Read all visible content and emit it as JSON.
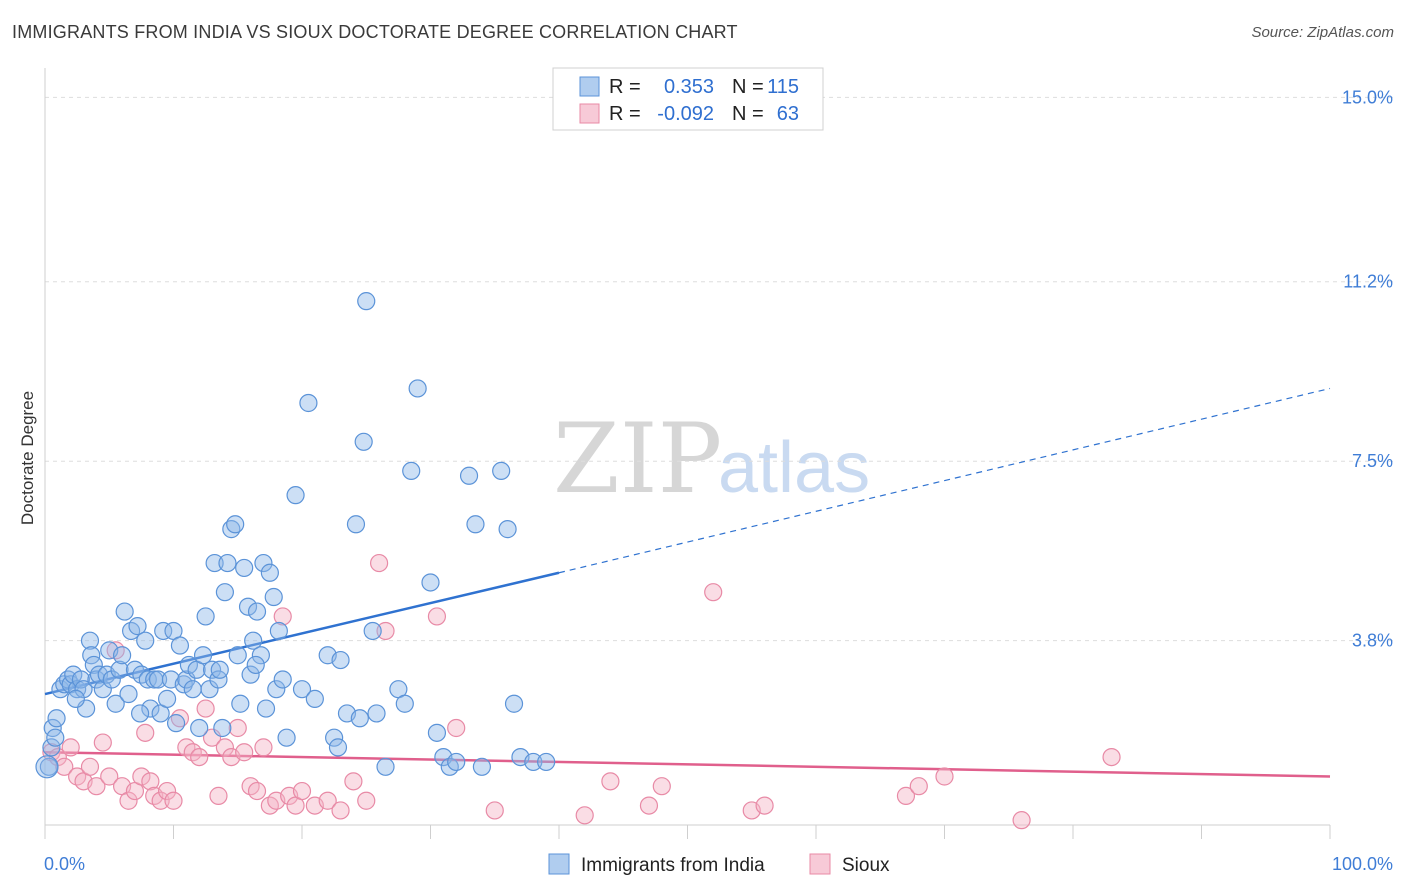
{
  "title": "IMMIGRANTS FROM INDIA VS SIOUX DOCTORATE DEGREE CORRELATION CHART",
  "source": "Source: ZipAtlas.com",
  "watermark": {
    "zip": "ZIP",
    "atlas": "atlas"
  },
  "colors": {
    "india": "#8fb8e8",
    "india_stroke": "#5b93d8",
    "india_line": "#2f72d0",
    "sioux": "#f4b3c6",
    "sioux_stroke": "#e88aa6",
    "sioux_line": "#e05f8c",
    "grid": "#dddddd",
    "tick_label": "#3f7dd6"
  },
  "legend": {
    "rows": [
      {
        "r_label": "R =",
        "r_value": "0.353",
        "n_label": "N =",
        "n_value": "115",
        "series": "india"
      },
      {
        "r_label": "R =",
        "r_value": "-0.092",
        "n_label": "N =",
        "n_value": "63",
        "series": "sioux"
      }
    ]
  },
  "bottom_legend": [
    {
      "label": "Immigrants from India",
      "series": "india"
    },
    {
      "label": "Sioux",
      "series": "sioux"
    }
  ],
  "chart_data": {
    "type": "scatter",
    "title": "IMMIGRANTS FROM INDIA VS SIOUX DOCTORATE DEGREE CORRELATION CHART",
    "xlabel": "",
    "ylabel": "Doctorate Degree",
    "xlim": [
      0,
      100
    ],
    "ylim": [
      0,
      15.4
    ],
    "y_ticks": [
      {
        "value": 3.8,
        "label": "3.8%"
      },
      {
        "value": 7.5,
        "label": "7.5%"
      },
      {
        "value": 11.2,
        "label": "11.2%"
      },
      {
        "value": 15.0,
        "label": "15.0%"
      }
    ],
    "x_tick_labels": {
      "min": "0.0%",
      "max": "100.0%"
    },
    "series": [
      {
        "name": "Immigrants from India",
        "key": "india",
        "R": 0.353,
        "N": 115,
        "trend": {
          "x0": 0,
          "y0": 2.7,
          "x1": 40,
          "y1": 5.2,
          "dashed_to_x": 100,
          "dashed_y1": 9.0
        },
        "points": [
          [
            0.3,
            1.2
          ],
          [
            0.5,
            1.6
          ],
          [
            0.6,
            2.0
          ],
          [
            0.8,
            1.8
          ],
          [
            0.9,
            2.2
          ],
          [
            1.2,
            2.8
          ],
          [
            1.5,
            2.9
          ],
          [
            1.8,
            3.0
          ],
          [
            2.0,
            2.9
          ],
          [
            2.2,
            3.1
          ],
          [
            2.5,
            2.8
          ],
          [
            2.8,
            3.0
          ],
          [
            3.0,
            2.8
          ],
          [
            3.2,
            2.4
          ],
          [
            3.5,
            3.8
          ],
          [
            3.6,
            3.5
          ],
          [
            3.8,
            3.3
          ],
          [
            4.0,
            3.0
          ],
          [
            4.2,
            3.1
          ],
          [
            4.5,
            2.8
          ],
          [
            4.8,
            3.1
          ],
          [
            5.0,
            3.6
          ],
          [
            5.2,
            3.0
          ],
          [
            5.5,
            2.5
          ],
          [
            5.8,
            3.2
          ],
          [
            6.0,
            3.5
          ],
          [
            6.2,
            4.4
          ],
          [
            6.5,
            2.7
          ],
          [
            6.7,
            4.0
          ],
          [
            7.0,
            3.2
          ],
          [
            7.2,
            4.1
          ],
          [
            7.5,
            3.1
          ],
          [
            7.8,
            3.8
          ],
          [
            8.0,
            3.0
          ],
          [
            8.2,
            2.4
          ],
          [
            8.5,
            3.0
          ],
          [
            8.8,
            3.0
          ],
          [
            9.0,
            2.3
          ],
          [
            9.2,
            4.0
          ],
          [
            9.5,
            2.6
          ],
          [
            9.8,
            3.0
          ],
          [
            10.0,
            4.0
          ],
          [
            10.2,
            2.1
          ],
          [
            10.5,
            3.7
          ],
          [
            10.8,
            2.9
          ],
          [
            11.0,
            3.0
          ],
          [
            11.2,
            3.3
          ],
          [
            11.5,
            2.8
          ],
          [
            11.8,
            3.2
          ],
          [
            12.0,
            2.0
          ],
          [
            12.3,
            3.5
          ],
          [
            12.5,
            4.3
          ],
          [
            12.8,
            2.8
          ],
          [
            13.0,
            3.2
          ],
          [
            13.2,
            5.4
          ],
          [
            13.5,
            3.0
          ],
          [
            13.8,
            2.0
          ],
          [
            14.0,
            4.8
          ],
          [
            14.2,
            5.4
          ],
          [
            14.5,
            6.1
          ],
          [
            14.8,
            6.2
          ],
          [
            15.0,
            3.5
          ],
          [
            15.2,
            2.5
          ],
          [
            15.5,
            5.3
          ],
          [
            15.8,
            4.5
          ],
          [
            16.0,
            3.1
          ],
          [
            16.2,
            3.8
          ],
          [
            16.5,
            4.4
          ],
          [
            16.8,
            3.5
          ],
          [
            17.0,
            5.4
          ],
          [
            17.2,
            2.4
          ],
          [
            17.5,
            5.2
          ],
          [
            17.8,
            4.7
          ],
          [
            18.0,
            2.8
          ],
          [
            18.2,
            4.0
          ],
          [
            18.5,
            3.0
          ],
          [
            18.8,
            1.8
          ],
          [
            19.5,
            6.8
          ],
          [
            20.0,
            2.8
          ],
          [
            20.5,
            8.7
          ],
          [
            21.0,
            2.6
          ],
          [
            22.0,
            3.5
          ],
          [
            22.5,
            1.8
          ],
          [
            23.0,
            3.4
          ],
          [
            23.5,
            2.3
          ],
          [
            24.2,
            6.2
          ],
          [
            24.5,
            2.2
          ],
          [
            24.8,
            7.9
          ],
          [
            25.0,
            10.8
          ],
          [
            25.5,
            4.0
          ],
          [
            25.8,
            2.3
          ],
          [
            26.5,
            1.2
          ],
          [
            27.5,
            2.8
          ],
          [
            28.0,
            2.5
          ],
          [
            28.5,
            7.3
          ],
          [
            29.0,
            9.0
          ],
          [
            30.0,
            5.0
          ],
          [
            30.5,
            1.9
          ],
          [
            31.0,
            1.4
          ],
          [
            31.5,
            1.2
          ],
          [
            32.0,
            1.3
          ],
          [
            33.0,
            7.2
          ],
          [
            33.5,
            6.2
          ],
          [
            34.0,
            1.2
          ],
          [
            35.5,
            7.3
          ],
          [
            36.0,
            6.1
          ],
          [
            36.5,
            2.5
          ],
          [
            37.0,
            1.4
          ],
          [
            38.0,
            1.3
          ],
          [
            39.0,
            1.3
          ],
          [
            2.4,
            2.6
          ],
          [
            7.4,
            2.3
          ],
          [
            13.6,
            3.2
          ],
          [
            16.4,
            3.3
          ],
          [
            22.8,
            1.6
          ]
        ]
      },
      {
        "name": "Sioux",
        "key": "sioux",
        "R": -0.092,
        "N": 63,
        "trend": {
          "x0": 0,
          "y0": 1.5,
          "x1": 100,
          "y1": 1.0
        },
        "points": [
          [
            0.5,
            1.5
          ],
          [
            1.0,
            1.4
          ],
          [
            1.5,
            1.2
          ],
          [
            2.0,
            1.6
          ],
          [
            2.5,
            1.0
          ],
          [
            3.0,
            0.9
          ],
          [
            3.5,
            1.2
          ],
          [
            4.0,
            0.8
          ],
          [
            4.5,
            1.7
          ],
          [
            5.0,
            1.0
          ],
          [
            5.5,
            3.6
          ],
          [
            6.0,
            0.8
          ],
          [
            6.5,
            0.5
          ],
          [
            7.0,
            0.7
          ],
          [
            7.5,
            1.0
          ],
          [
            7.8,
            1.9
          ],
          [
            8.2,
            0.9
          ],
          [
            8.5,
            0.6
          ],
          [
            9.0,
            0.5
          ],
          [
            9.5,
            0.7
          ],
          [
            10.0,
            0.5
          ],
          [
            10.5,
            2.2
          ],
          [
            11.0,
            1.6
          ],
          [
            11.5,
            1.5
          ],
          [
            12.0,
            1.4
          ],
          [
            12.5,
            2.4
          ],
          [
            13.0,
            1.8
          ],
          [
            13.5,
            0.6
          ],
          [
            14.0,
            1.6
          ],
          [
            14.5,
            1.4
          ],
          [
            15.0,
            2.0
          ],
          [
            15.5,
            1.5
          ],
          [
            16.0,
            0.8
          ],
          [
            16.5,
            0.7
          ],
          [
            17.0,
            1.6
          ],
          [
            17.5,
            0.4
          ],
          [
            18.0,
            0.5
          ],
          [
            18.5,
            4.3
          ],
          [
            19.0,
            0.6
          ],
          [
            19.5,
            0.4
          ],
          [
            20.0,
            0.7
          ],
          [
            21.0,
            0.4
          ],
          [
            22.0,
            0.5
          ],
          [
            23.0,
            0.3
          ],
          [
            24.0,
            0.9
          ],
          [
            25.0,
            0.5
          ],
          [
            26.0,
            5.4
          ],
          [
            26.5,
            4.0
          ],
          [
            30.5,
            4.3
          ],
          [
            32.0,
            2.0
          ],
          [
            35.0,
            0.3
          ],
          [
            42.0,
            0.2
          ],
          [
            44.0,
            0.9
          ],
          [
            47.0,
            0.4
          ],
          [
            48.0,
            0.8
          ],
          [
            52.0,
            4.8
          ],
          [
            55.0,
            0.3
          ],
          [
            56.0,
            0.4
          ],
          [
            67.0,
            0.6
          ],
          [
            68.0,
            0.8
          ],
          [
            70.0,
            1.0
          ],
          [
            76.0,
            0.1
          ],
          [
            83.0,
            1.4
          ]
        ]
      }
    ]
  }
}
